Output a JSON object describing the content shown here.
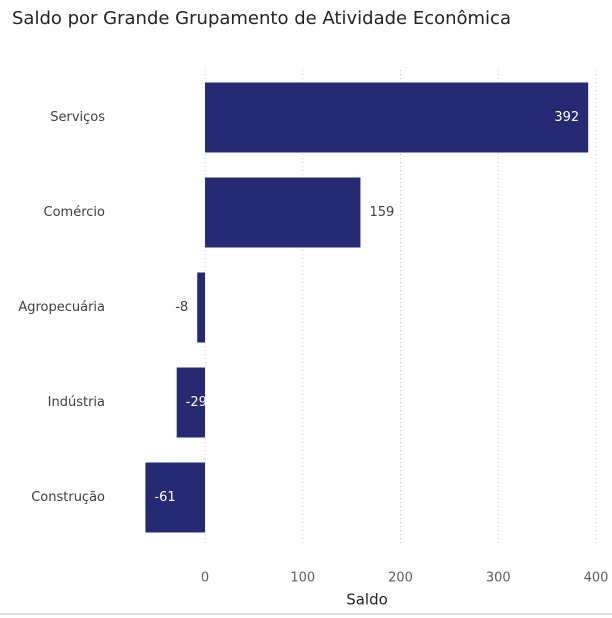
{
  "chart_data": {
    "type": "bar",
    "orientation": "horizontal",
    "title": "Saldo por Grande Grupamento de Atividade Econômica",
    "x_label": "Saldo",
    "categories": [
      "Serviços",
      "Comércio",
      "Agropecuária",
      "Indústria",
      "Construção"
    ],
    "values": [
      392,
      159,
      -8,
      -29,
      -61
    ],
    "color": "#252a72",
    "xlim": [
      -65,
      400
    ],
    "xticks": [
      0,
      100,
      200,
      300,
      400
    ],
    "grid": true
  }
}
